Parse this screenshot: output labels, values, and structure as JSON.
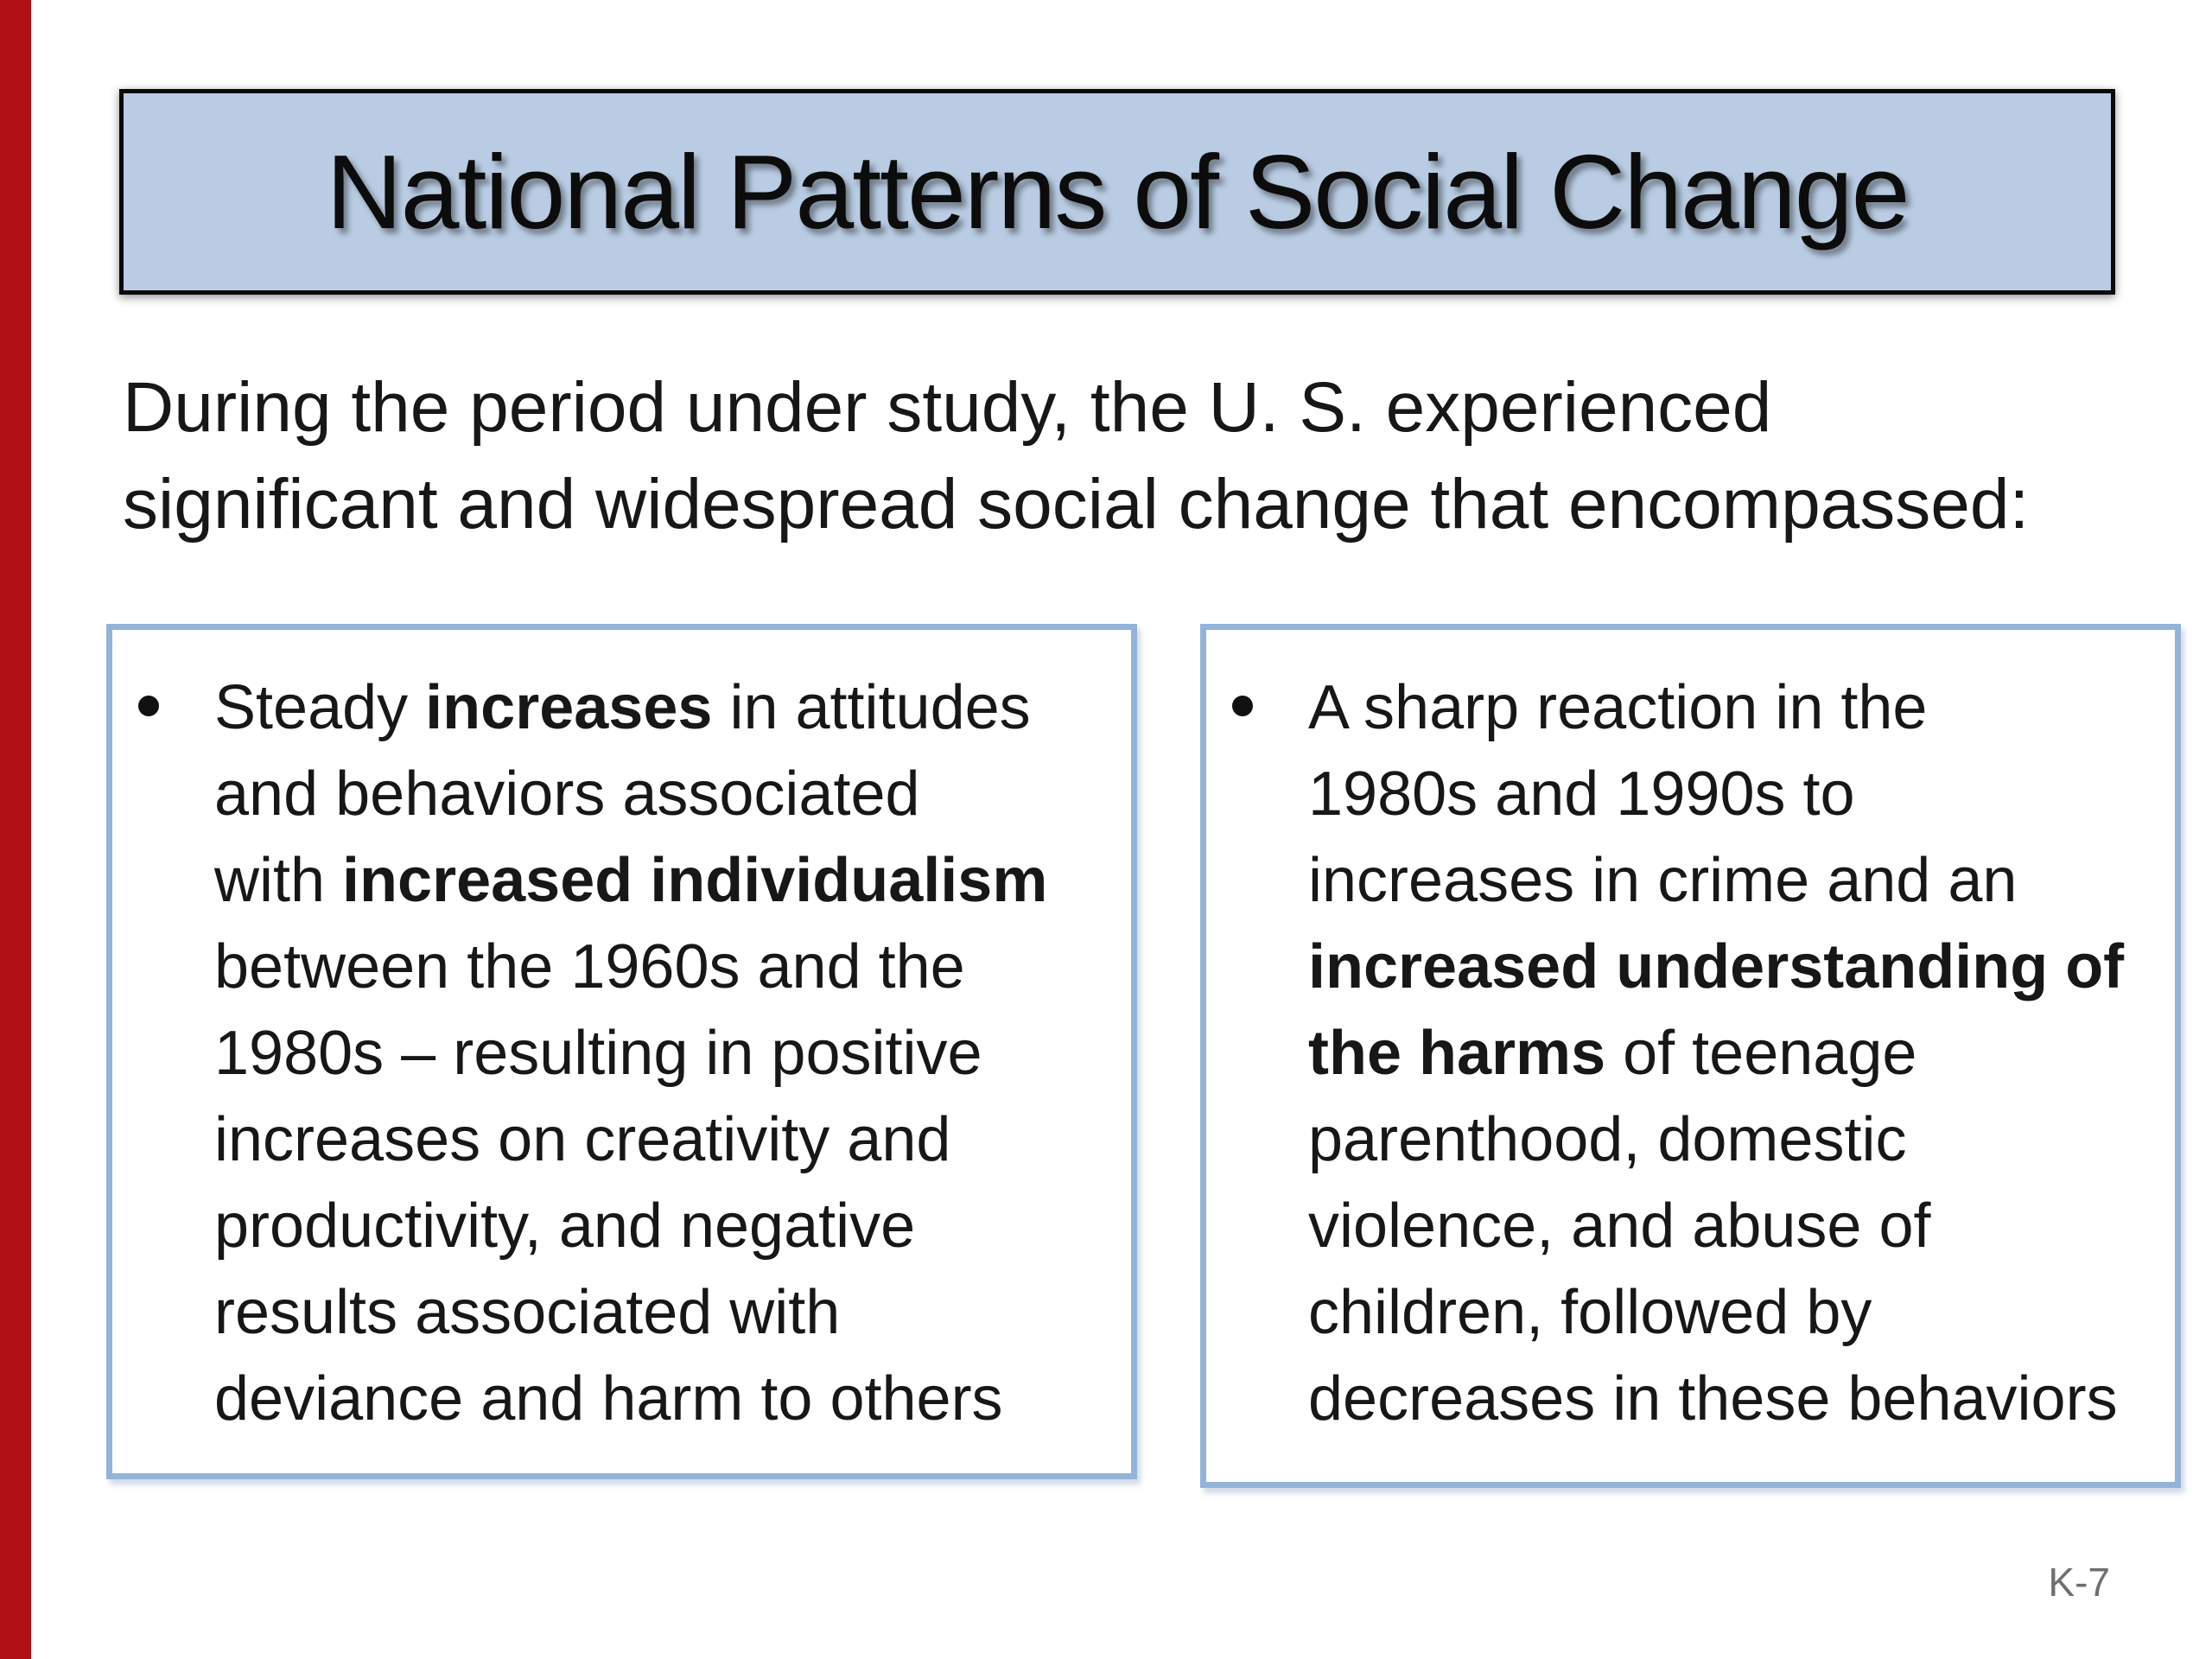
{
  "slide": {
    "title": "National Patterns of Social Change",
    "intro_lines": [
      "During the period under study, the U. S. experienced",
      "significant and widespread social change that encompassed:"
    ],
    "footer_page_label": "K-7"
  },
  "boxes": {
    "left": {
      "bullet_glyph": "bullet-dot",
      "lines": [
        [
          {
            "t": "Steady ",
            "b": 0
          },
          {
            "t": "increases",
            "b": 1
          },
          {
            "t": " in attitudes",
            "b": 0
          }
        ],
        [
          {
            "t": "and behaviors associated",
            "b": 0
          }
        ],
        [
          {
            "t": "with ",
            "b": 0
          },
          {
            "t": "increased individualism",
            "b": 1
          }
        ],
        [
          {
            "t": "between the 1960s and the",
            "b": 0
          }
        ],
        [
          {
            "t": "1980s – resulting in positive",
            "b": 0
          }
        ],
        [
          {
            "t": "increases on creativity and",
            "b": 0
          }
        ],
        [
          {
            "t": "productivity, and negative",
            "b": 0
          }
        ],
        [
          {
            "t": "results associated with",
            "b": 0
          }
        ],
        [
          {
            "t": "deviance and harm to others",
            "b": 0
          }
        ]
      ]
    },
    "right": {
      "bullet_glyph": "bullet-dot",
      "lines": [
        [
          {
            "t": "A sharp reaction in the",
            "b": 0
          }
        ],
        [
          {
            "t": "1980s and 1990s to",
            "b": 0
          }
        ],
        [
          {
            "t": "increases in crime and an",
            "b": 0
          }
        ],
        [
          {
            "t": "increased understanding of",
            "b": 1
          }
        ],
        [
          {
            "t": "the harms",
            "b": 1
          },
          {
            "t": " of teenage",
            "b": 0
          }
        ],
        [
          {
            "t": "parenthood, domestic",
            "b": 0
          }
        ],
        [
          {
            "t": "violence, and abuse of",
            "b": 0
          }
        ],
        [
          {
            "t": "children, followed by",
            "b": 0
          }
        ],
        [
          {
            "t": "decreases in these behaviors",
            "b": 0
          }
        ]
      ]
    }
  },
  "colors": {
    "red_bar": "#b01116",
    "title_fill": "#b9cce3",
    "title_border": "#090909",
    "box_border": "#94b3d8",
    "body_text": "#171717",
    "footer_text": "#6f6f6f"
  }
}
